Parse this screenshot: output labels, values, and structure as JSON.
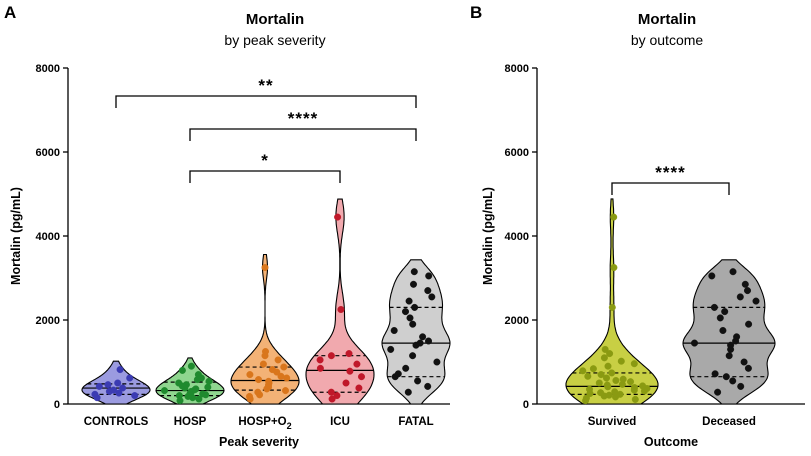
{
  "chart_data": [
    {
      "type": "violin",
      "panel": "A",
      "title": "Mortalin",
      "subtitle": "by peak severity",
      "xlabel": "Peak severity",
      "ylabel": "Mortalin (pg/mL)",
      "ylim": [
        0,
        8000
      ],
      "yticks": [
        0,
        2000,
        4000,
        6000,
        8000
      ],
      "categories": [
        "CONTROLS",
        "HOSP",
        "HOSP+O2",
        "ICU",
        "FATAL"
      ],
      "series": [
        {
          "category": "CONTROLS",
          "color": "#3b3bb3",
          "fill": "#9b9be0",
          "median": 380,
          "q1": 230,
          "q3": 480,
          "points": [
            150,
            200,
            230,
            260,
            300,
            330,
            380,
            420,
            460,
            500,
            620,
            820
          ]
        },
        {
          "category": "HOSP",
          "color": "#1f8a2e",
          "fill": "#8fd68f",
          "median": 320,
          "q1": 200,
          "q3": 520,
          "points": [
            80,
            120,
            150,
            180,
            200,
            220,
            240,
            260,
            280,
            300,
            320,
            340,
            360,
            380,
            400,
            430,
            460,
            500,
            540,
            580,
            620,
            700,
            800,
            900
          ]
        },
        {
          "category": "HOSP+O2",
          "color": "#d9761c",
          "fill": "#f3b276",
          "median": 560,
          "q1": 330,
          "q3": 880,
          "points": [
            120,
            180,
            220,
            280,
            320,
            360,
            400,
            450,
            500,
            540,
            580,
            620,
            660,
            700,
            760,
            820,
            880,
            950,
            1050,
            1150,
            1250,
            3250
          ]
        },
        {
          "category": "ICU",
          "color": "#c0182a",
          "fill": "#f1a9ae",
          "median": 800,
          "q1": 280,
          "q3": 1150,
          "points": [
            120,
            200,
            280,
            380,
            500,
            650,
            780,
            850,
            950,
            1050,
            1150,
            1200,
            2250,
            4450
          ]
        },
        {
          "category": "FATAL",
          "color": "#111111",
          "fill": "#cfcfcf",
          "median": 1450,
          "q1": 650,
          "q3": 2300,
          "points": [
            280,
            420,
            550,
            650,
            720,
            850,
            1000,
            1150,
            1300,
            1400,
            1450,
            1500,
            1600,
            1750,
            1900,
            2050,
            2200,
            2300,
            2450,
            2550,
            2700,
            2850,
            3050,
            3150
          ]
        }
      ],
      "significance": [
        {
          "from": "CONTROLS",
          "to": "FATAL",
          "label": "**"
        },
        {
          "from": "HOSP",
          "to": "FATAL",
          "label": "****"
        },
        {
          "from": "HOSP",
          "to": "ICU",
          "label": "*"
        }
      ]
    },
    {
      "type": "violin",
      "panel": "B",
      "title": "Mortalin",
      "subtitle": "by outcome",
      "xlabel": "Outcome",
      "ylabel": "Mortalin (pg/mL)",
      "ylim": [
        0,
        8000
      ],
      "yticks": [
        0,
        2000,
        4000,
        6000,
        8000
      ],
      "categories": [
        "Survived",
        "Deceased"
      ],
      "series": [
        {
          "category": "Survived",
          "color": "#8a9a12",
          "fill": "#c8cf44",
          "median": 420,
          "q1": 230,
          "q3": 740,
          "points": [
            80,
            110,
            140,
            170,
            190,
            210,
            230,
            250,
            270,
            290,
            310,
            330,
            350,
            370,
            390,
            410,
            430,
            450,
            470,
            500,
            530,
            560,
            590,
            620,
            660,
            700,
            740,
            790,
            840,
            900,
            960,
            1020,
            1100,
            1200,
            1300,
            2300,
            3250,
            4450
          ]
        },
        {
          "category": "Deceased",
          "color": "#111111",
          "fill": "#a9a9a9",
          "median": 1450,
          "q1": 650,
          "q3": 2300,
          "points": [
            280,
            420,
            550,
            650,
            720,
            850,
            1000,
            1150,
            1300,
            1400,
            1450,
            1500,
            1600,
            1750,
            1900,
            2050,
            2200,
            2300,
            2450,
            2550,
            2700,
            2850,
            3050,
            3150
          ]
        }
      ],
      "significance": [
        {
          "from": "Survived",
          "to": "Deceased",
          "label": "****"
        }
      ]
    }
  ],
  "labels": {
    "panelA": "A",
    "panelB": "B",
    "titleA": "Mortalin",
    "subtitleA": "by peak severity",
    "titleB": "Mortalin",
    "subtitleB": "by outcome",
    "hospO2_main": "HOSP+O",
    "hospO2_sub": "2"
  }
}
